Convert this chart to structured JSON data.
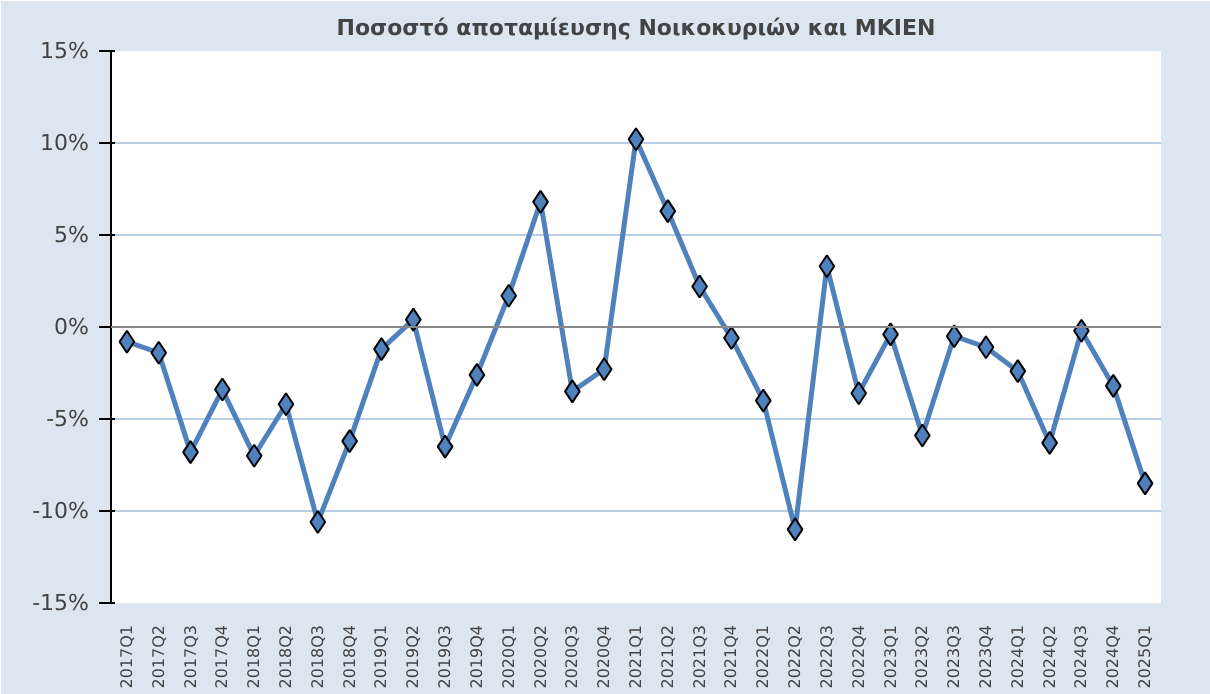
{
  "chart_data": {
    "type": "line",
    "title": "Ποσοστό αποταμίευσης Νοικοκυριών και ΜΚΙΕΝ",
    "categories": [
      "2017Q1",
      "2017Q2",
      "2017Q3",
      "2017Q4",
      "2018Q1",
      "2018Q2",
      "2018Q3",
      "2018Q4",
      "2019Q1",
      "2019Q2",
      "2019Q3",
      "2019Q4",
      "2020Q1",
      "2020Q2",
      "2020Q3",
      "2020Q4",
      "2021Q1",
      "2021Q2",
      "2021Q3",
      "2021Q4",
      "2022Q1",
      "2022Q2",
      "2022Q3",
      "2022Q4",
      "2023Q1",
      "2023Q2",
      "2023Q3",
      "2023Q4",
      "2024Q1",
      "2024Q2",
      "2024Q3",
      "2024Q4",
      "2025Q1"
    ],
    "series": [
      {
        "color": "#4f81bd",
        "values": [
          -0.8,
          -1.4,
          -6.8,
          -3.4,
          -7.0,
          -4.2,
          -10.6,
          -6.2,
          -1.2,
          0.4,
          -6.5,
          -2.6,
          1.7,
          6.8,
          -3.5,
          -2.3,
          10.2,
          6.3,
          2.2,
          -0.6,
          -4.0,
          -11.0,
          3.3,
          -3.6,
          -0.4,
          -5.9,
          -0.5,
          -1.1,
          -2.4,
          -6.3,
          -0.2,
          -3.2,
          -8.5
        ]
      }
    ],
    "ylim": [
      -15,
      15
    ],
    "yticks": [
      {
        "value": -15,
        "label": "-15%"
      },
      {
        "value": -10,
        "label": "-10%"
      },
      {
        "value": -5,
        "label": "-5%"
      },
      {
        "value": 0,
        "label": "0%"
      },
      {
        "value": 5,
        "label": "5%"
      },
      {
        "value": 10,
        "label": "10%"
      },
      {
        "value": 15,
        "label": "15%"
      }
    ],
    "grid": "y",
    "marker": "diamond",
    "line_style": "solid"
  }
}
